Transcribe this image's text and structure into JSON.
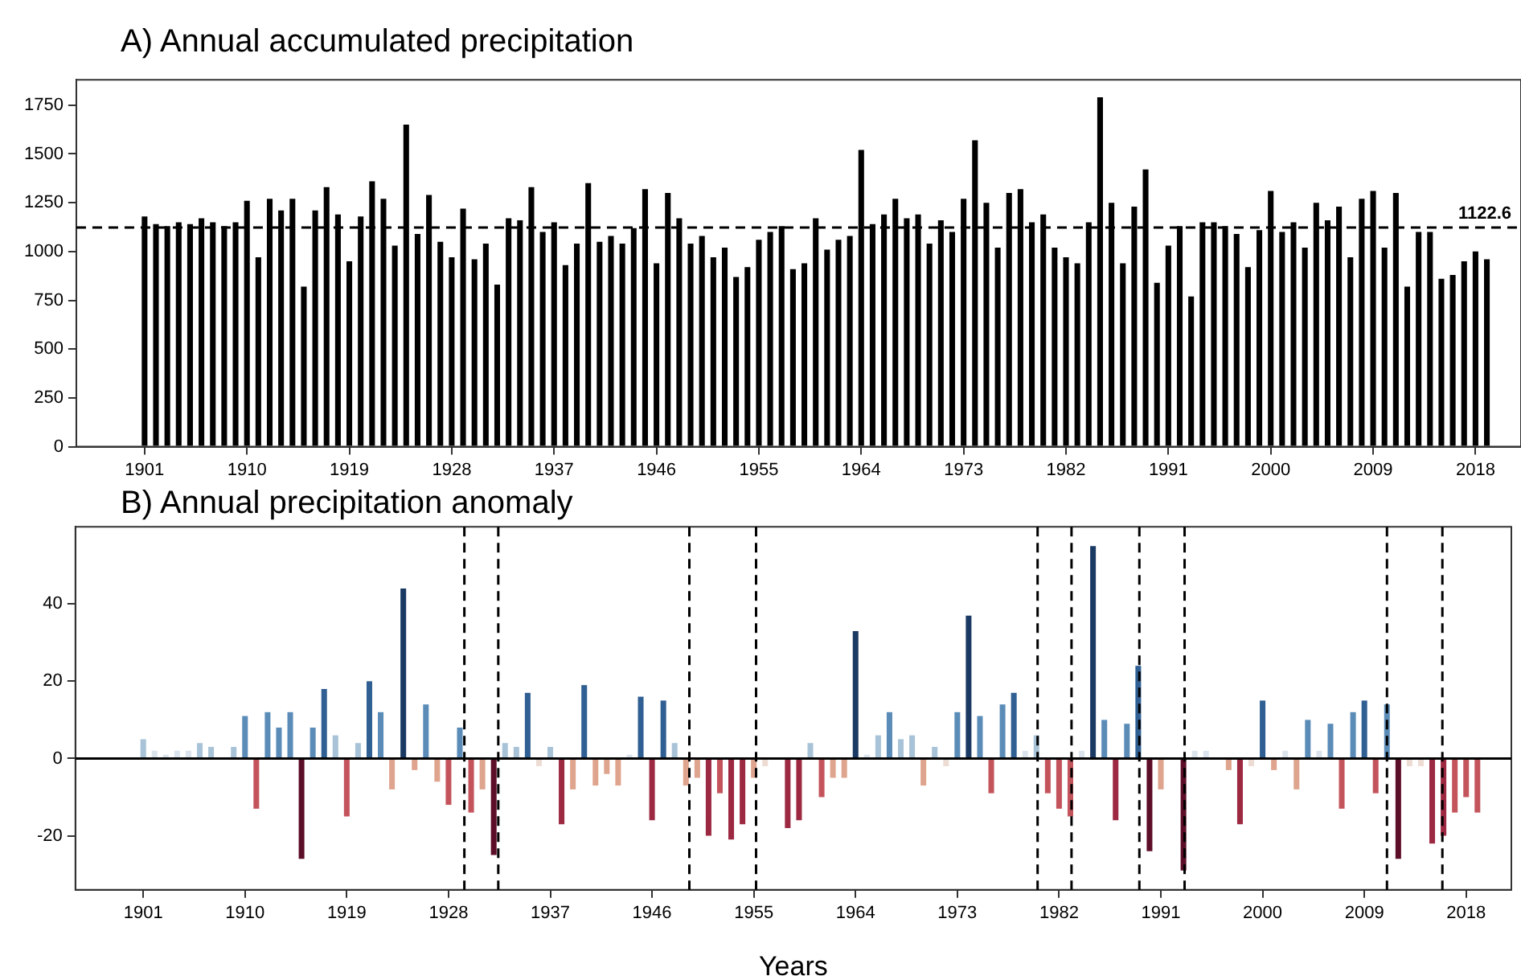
{
  "chart_data": [
    {
      "type": "bar",
      "title": "A) Annual accumulated precipitation",
      "x": [
        1901,
        1902,
        1903,
        1904,
        1905,
        1906,
        1907,
        1908,
        1909,
        1910,
        1911,
        1912,
        1913,
        1914,
        1915,
        1916,
        1917,
        1918,
        1919,
        1920,
        1921,
        1922,
        1923,
        1924,
        1925,
        1926,
        1927,
        1928,
        1929,
        1930,
        1931,
        1932,
        1933,
        1934,
        1935,
        1936,
        1937,
        1938,
        1939,
        1940,
        1941,
        1942,
        1943,
        1944,
        1945,
        1946,
        1947,
        1948,
        1949,
        1950,
        1951,
        1952,
        1953,
        1954,
        1955,
        1956,
        1957,
        1958,
        1959,
        1960,
        1961,
        1962,
        1963,
        1964,
        1965,
        1966,
        1967,
        1968,
        1969,
        1970,
        1971,
        1972,
        1973,
        1974,
        1975,
        1976,
        1977,
        1978,
        1979,
        1980,
        1981,
        1982,
        1983,
        1984,
        1985,
        1986,
        1987,
        1988,
        1989,
        1990,
        1991,
        1992,
        1993,
        1994,
        1995,
        1996,
        1997,
        1998,
        1999,
        2000,
        2001,
        2002,
        2003,
        2004,
        2005,
        2006,
        2007,
        2008,
        2009,
        2010,
        2011,
        2012,
        2013,
        2014,
        2015,
        2016,
        2017,
        2018,
        2019
      ],
      "values": [
        1180,
        1140,
        1130,
        1150,
        1140,
        1170,
        1150,
        1130,
        1150,
        1260,
        970,
        1270,
        1210,
        1270,
        820,
        1210,
        1330,
        1190,
        950,
        1180,
        1360,
        1270,
        1030,
        1650,
        1090,
        1290,
        1050,
        970,
        1220,
        960,
        1040,
        830,
        1170,
        1160,
        1330,
        1100,
        1150,
        930,
        1040,
        1350,
        1050,
        1080,
        1040,
        1120,
        1320,
        940,
        1300,
        1170,
        1040,
        1080,
        970,
        1020,
        870,
        920,
        1060,
        1100,
        1130,
        910,
        940,
        1170,
        1010,
        1060,
        1080,
        1520,
        1140,
        1190,
        1270,
        1170,
        1190,
        1040,
        1160,
        1100,
        1270,
        1570,
        1250,
        1020,
        1300,
        1320,
        1150,
        1190,
        1020,
        970,
        940,
        1150,
        1790,
        1250,
        940,
        1230,
        1420,
        840,
        1030,
        1130,
        770,
        1150,
        1150,
        1130,
        1090,
        920,
        1110,
        1310,
        1100,
        1150,
        1020,
        1250,
        1160,
        1230,
        970,
        1270,
        1310,
        1020,
        1300,
        820,
        1100,
        1100,
        860,
        880,
        950,
        1000,
        960
      ],
      "color": "#000000",
      "xlim": [
        1895,
        2022
      ],
      "xticks": [
        1901,
        1910,
        1919,
        1928,
        1937,
        1946,
        1955,
        1964,
        1973,
        1982,
        1991,
        2000,
        2009,
        2018
      ],
      "ylim": [
        0,
        1880
      ],
      "yticks": [
        0,
        250,
        500,
        750,
        1000,
        1250,
        1500,
        1750
      ],
      "ref_lines": [
        {
          "axis": "y",
          "value": 1122.6,
          "label": "1122.6",
          "line_style": "dashed"
        }
      ],
      "grid": false
    },
    {
      "type": "bar",
      "title": "B) Annual precipitation anomaly",
      "xlabel": "Years",
      "x": [
        1901,
        1902,
        1903,
        1904,
        1905,
        1906,
        1907,
        1908,
        1909,
        1910,
        1911,
        1912,
        1913,
        1914,
        1915,
        1916,
        1917,
        1918,
        1919,
        1920,
        1921,
        1922,
        1923,
        1924,
        1925,
        1926,
        1927,
        1928,
        1929,
        1930,
        1931,
        1932,
        1933,
        1934,
        1935,
        1936,
        1937,
        1938,
        1939,
        1940,
        1941,
        1942,
        1943,
        1944,
        1945,
        1946,
        1947,
        1948,
        1949,
        1950,
        1951,
        1952,
        1953,
        1954,
        1955,
        1956,
        1957,
        1958,
        1959,
        1960,
        1961,
        1962,
        1963,
        1964,
        1965,
        1966,
        1967,
        1968,
        1969,
        1970,
        1971,
        1972,
        1973,
        1974,
        1975,
        1976,
        1977,
        1978,
        1979,
        1980,
        1981,
        1982,
        1983,
        1984,
        1985,
        1986,
        1987,
        1988,
        1989,
        1990,
        1991,
        1992,
        1993,
        1994,
        1995,
        1996,
        1997,
        1998,
        1999,
        2000,
        2001,
        2002,
        2003,
        2004,
        2005,
        2006,
        2007,
        2008,
        2009,
        2010,
        2011,
        2012,
        2013,
        2014,
        2015,
        2016,
        2017,
        2018,
        2019
      ],
      "values": [
        5,
        2,
        1,
        2,
        2,
        4,
        3,
        null,
        3,
        11,
        -13,
        12,
        8,
        12,
        -26,
        8,
        18,
        6,
        -15,
        4,
        20,
        12,
        -8,
        44,
        -3,
        14,
        -6,
        -12,
        8,
        -14,
        -8,
        -25,
        4,
        3,
        17,
        -2,
        3,
        -17,
        -8,
        19,
        -7,
        -4,
        -7,
        1,
        16,
        -16,
        15,
        4,
        -7,
        -5,
        -20,
        -9,
        -21,
        -17,
        -5,
        -2,
        null,
        -18,
        -16,
        4,
        -10,
        -5,
        -5,
        33,
        1,
        6,
        12,
        5,
        6,
        -7,
        3,
        -2,
        12,
        37,
        11,
        -9,
        14,
        17,
        2,
        6,
        -9,
        -13,
        -15,
        2,
        55,
        10,
        -16,
        9,
        24,
        -24,
        -8,
        null,
        -29,
        2,
        2,
        null,
        -3,
        -17,
        -2,
        15,
        -3,
        2,
        -8,
        10,
        2,
        9,
        -13,
        12,
        15,
        -9,
        14,
        -26,
        -2,
        -2,
        -22,
        -20,
        -14,
        -10,
        -14
      ],
      "colors": [
        "#a8c3d7",
        "#dbe4ec",
        "#dbe4ec",
        "#dbe4ec",
        "#dbe4ec",
        "#a8c3d7",
        "#a8c3d7",
        "#dbe4ec",
        "#a8c3d7",
        "#5b8cb8",
        "#c4545c",
        "#5b8cb8",
        "#5b8cb8",
        "#5b8cb8",
        "#5c0d27",
        "#5b8cb8",
        "#2f5f93",
        "#a8c3d7",
        "#c4545c",
        "#a8c3d7",
        "#2f5f93",
        "#5b8cb8",
        "#dea48d",
        "#1b3a63",
        "#dea48d",
        "#5b8cb8",
        "#dea48d",
        "#c4545c",
        "#5b8cb8",
        "#c4545c",
        "#dea48d",
        "#5c0d27",
        "#a8c3d7",
        "#a8c3d7",
        "#2f5f93",
        "#eddcd4",
        "#a8c3d7",
        "#9c2941",
        "#dea48d",
        "#2f5f93",
        "#dea48d",
        "#dea48d",
        "#dea48d",
        "#dbe4ec",
        "#2f5f93",
        "#9c2941",
        "#2f5f93",
        "#a8c3d7",
        "#dea48d",
        "#dea48d",
        "#9c2941",
        "#c4545c",
        "#9c2941",
        "#9c2941",
        "#dea48d",
        "#eddcd4",
        "#eddcd4",
        "#9c2941",
        "#9c2941",
        "#a8c3d7",
        "#c4545c",
        "#dea48d",
        "#dea48d",
        "#1b3a63",
        "#dbe4ec",
        "#a8c3d7",
        "#5b8cb8",
        "#a8c3d7",
        "#a8c3d7",
        "#dea48d",
        "#a8c3d7",
        "#eddcd4",
        "#5b8cb8",
        "#1b3a63",
        "#5b8cb8",
        "#c4545c",
        "#5b8cb8",
        "#2f5f93",
        "#dbe4ec",
        "#a8c3d7",
        "#c4545c",
        "#c4545c",
        "#c4545c",
        "#dbe4ec",
        "#1b3a63",
        "#5b8cb8",
        "#9c2941",
        "#5b8cb8",
        "#2f5f93",
        "#5c0d27",
        "#dea48d",
        "#dbe4ec",
        "#5c0d27",
        "#dbe4ec",
        "#dbe4ec",
        "#dbe4ec",
        "#dea48d",
        "#9c2941",
        "#eddcd4",
        "#2f5f93",
        "#dea48d",
        "#dbe4ec",
        "#dea48d",
        "#5b8cb8",
        "#dbe4ec",
        "#5b8cb8",
        "#c4545c",
        "#5b8cb8",
        "#2f5f93",
        "#c4545c",
        "#5b8cb8",
        "#5c0d27",
        "#eddcd4",
        "#eddcd4",
        "#9c2941",
        "#9c2941",
        "#c4545c",
        "#c4545c",
        "#c4545c"
      ],
      "xlim": [
        1895,
        2022
      ],
      "xticks": [
        1901,
        1910,
        1919,
        1928,
        1937,
        1946,
        1955,
        1964,
        1973,
        1982,
        1991,
        2000,
        2009,
        2018
      ],
      "ylim": [
        -34,
        60
      ],
      "yticks": [
        -20,
        0,
        20,
        40
      ],
      "ref_lines": [
        {
          "axis": "y",
          "value": 0,
          "line_style": "solid"
        },
        {
          "axis": "x",
          "value": 1929.4,
          "line_style": "dashed"
        },
        {
          "axis": "x",
          "value": 1932.4,
          "line_style": "dashed"
        },
        {
          "axis": "x",
          "value": 1949.3,
          "line_style": "dashed"
        },
        {
          "axis": "x",
          "value": 1955.2,
          "line_style": "dashed"
        },
        {
          "axis": "x",
          "value": 1980.1,
          "line_style": "dashed"
        },
        {
          "axis": "x",
          "value": 1983.1,
          "line_style": "dashed"
        },
        {
          "axis": "x",
          "value": 1989.1,
          "line_style": "dashed"
        },
        {
          "axis": "x",
          "value": 1993.1,
          "line_style": "dashed"
        },
        {
          "axis": "x",
          "value": 2011,
          "line_style": "dashed"
        },
        {
          "axis": "x",
          "value": 2015.9,
          "line_style": "dashed"
        }
      ],
      "grid": false
    }
  ]
}
